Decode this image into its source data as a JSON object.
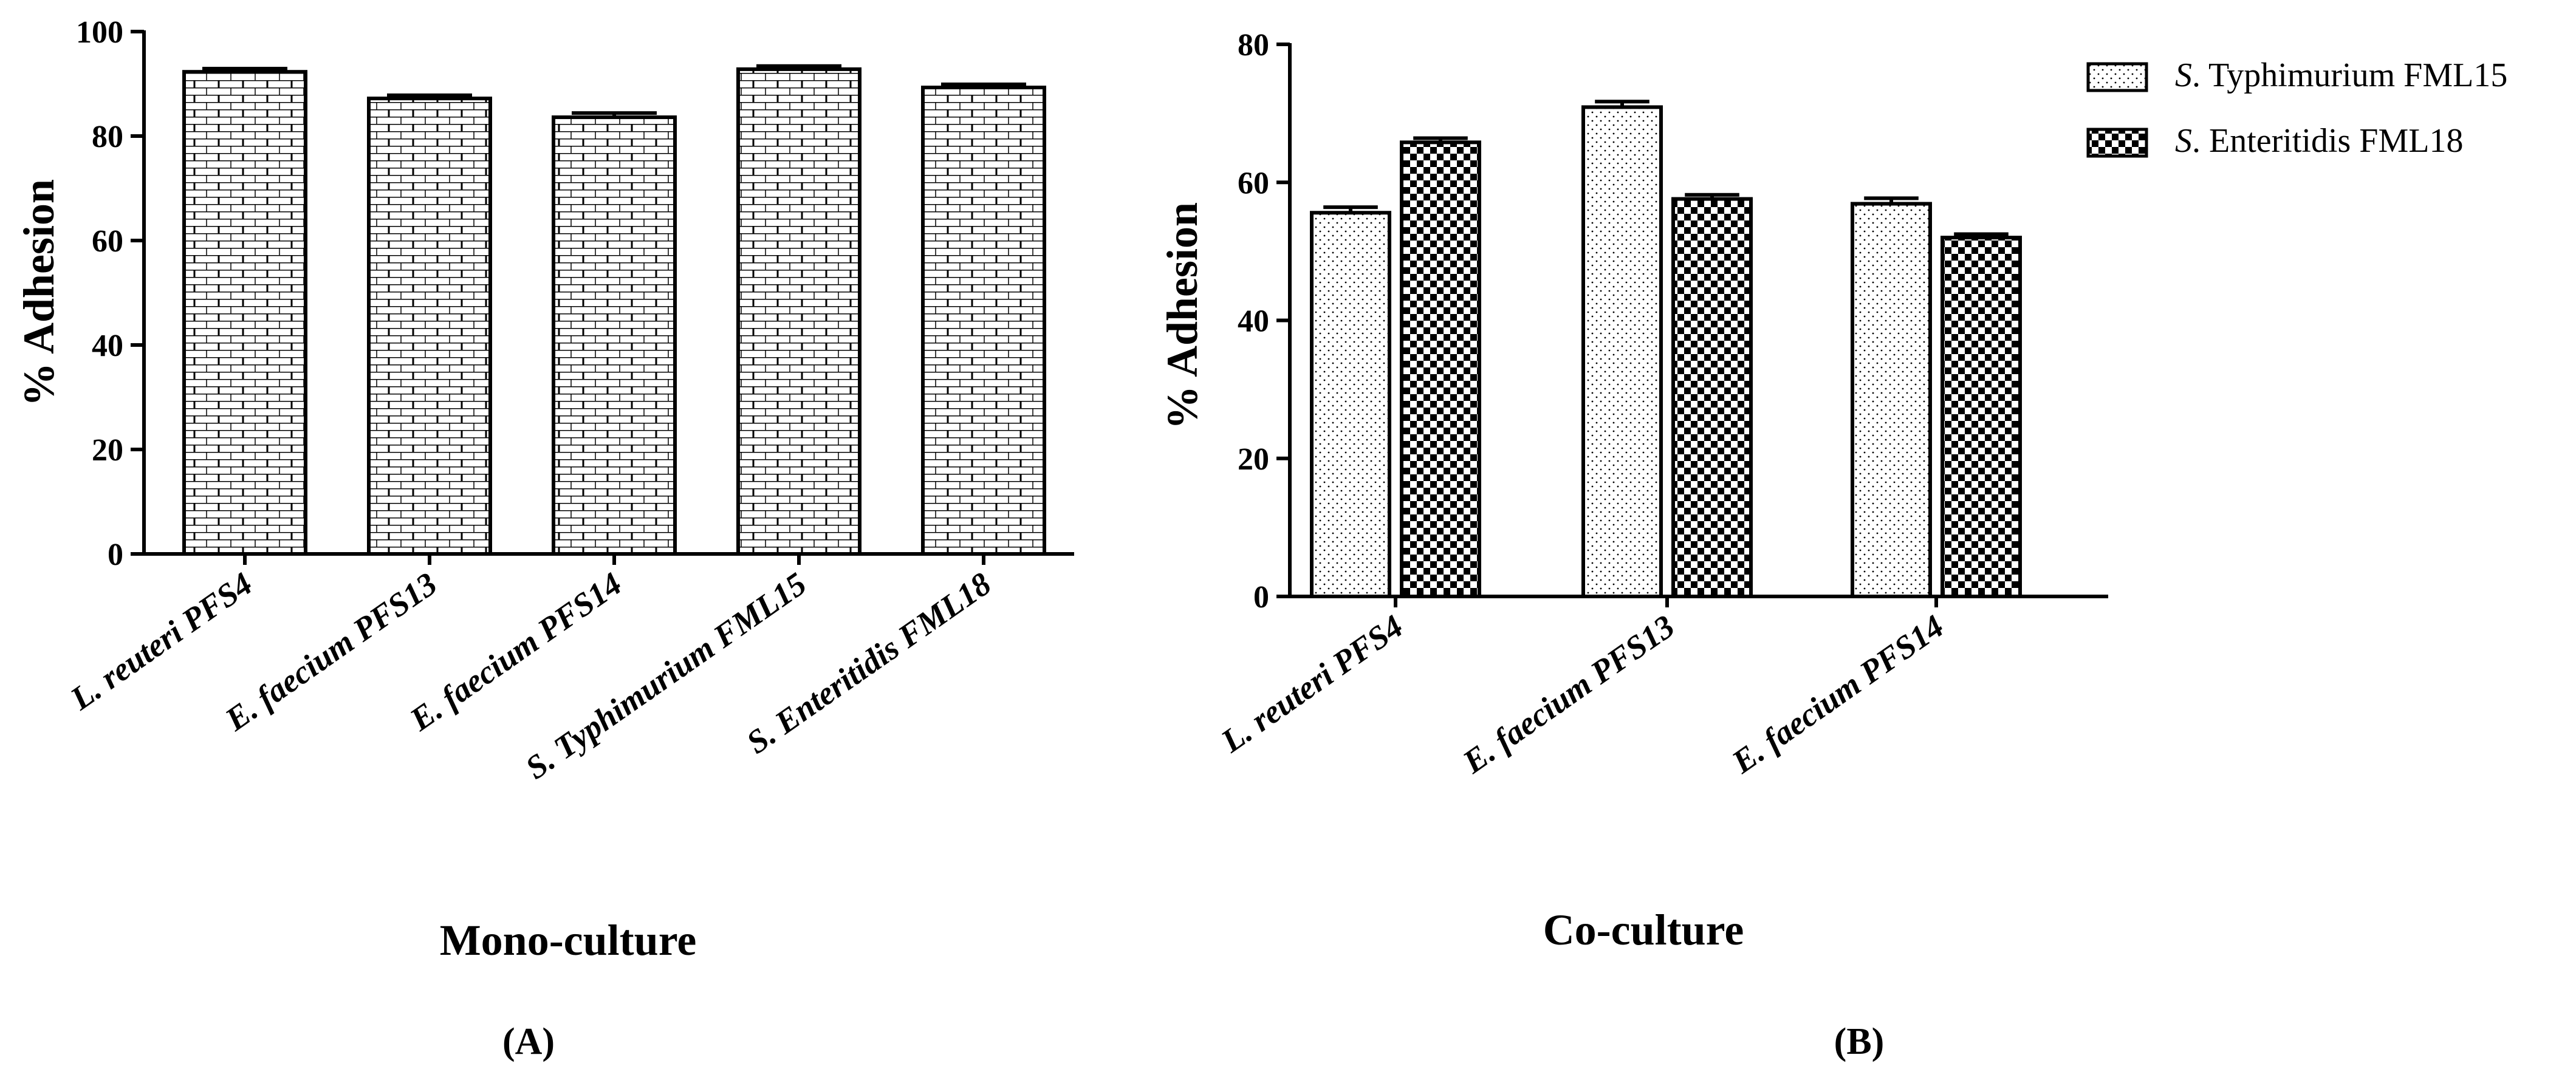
{
  "chart_data": [
    {
      "panel_label": "(A)",
      "type": "bar",
      "title": "",
      "xlabel": "Mono-culture",
      "ylabel": "% Adhesion",
      "ylim": [
        0,
        100
      ],
      "yticks": [
        0,
        20,
        40,
        60,
        80,
        100
      ],
      "categories": [
        "L. reuteri PFS4",
        "E. faecium PFS13",
        "E. faecium PFS14",
        "S. Typhimurium FML15",
        "S. Enteritidis FML18"
      ],
      "values": [
        92.3,
        87.2,
        83.6,
        92.8,
        89.3
      ],
      "errors": [
        0.6,
        0.6,
        0.8,
        0.6,
        0.6
      ],
      "pattern": "brick",
      "grid": false,
      "legend": "none"
    },
    {
      "panel_label": "(B)",
      "type": "bar",
      "title": "",
      "xlabel": "Co-culture",
      "ylabel": "% Adhesion",
      "ylim": [
        0,
        80
      ],
      "yticks": [
        0,
        20,
        40,
        60,
        80
      ],
      "categories": [
        "L. reuteri PFS4",
        "E. faecium PFS13",
        "E. faecium PFS14"
      ],
      "series": [
        {
          "name_italic": "S",
          "name_rest": ". Typhimurium FML15",
          "pattern": "dots",
          "values": [
            55.6,
            70.9,
            56.9
          ],
          "errors": [
            0.8,
            0.8,
            0.8
          ]
        },
        {
          "name_italic": "S",
          "name_rest": ". Enteritidis FML18",
          "pattern": "checker",
          "values": [
            65.8,
            57.6,
            52.0
          ],
          "errors": [
            0.6,
            0.6,
            0.5
          ]
        }
      ],
      "grid": false,
      "legend": "top-right"
    }
  ]
}
